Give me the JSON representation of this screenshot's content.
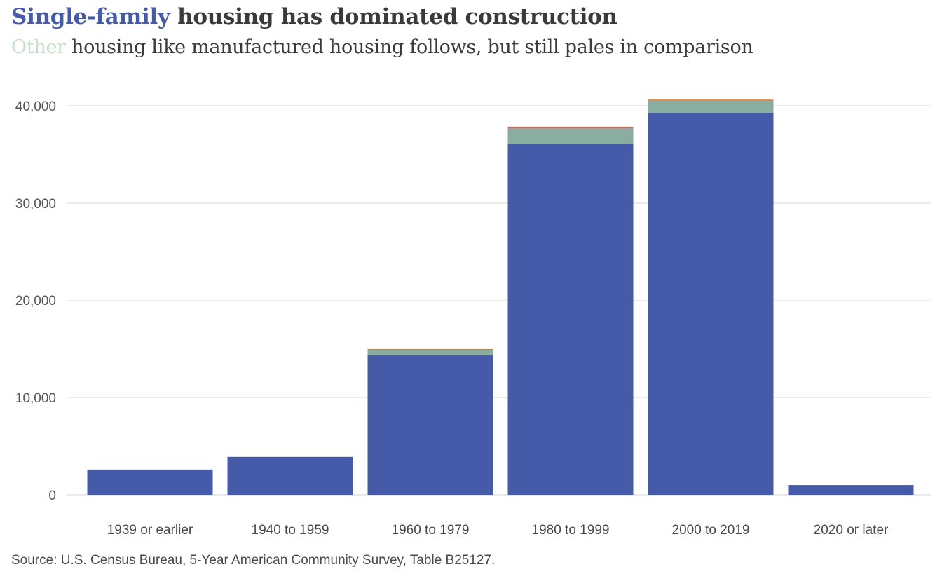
{
  "title": {
    "highlight": "Single-family",
    "rest": " housing has dominated construction"
  },
  "subtitle": {
    "highlight": "Other",
    "rest": " housing like manufactured housing follows, but still pales in comparison"
  },
  "source": "Source: U.S. Census Bureau, 5-Year  American Community Survey, Table B25127.",
  "colors": {
    "single_family": "#455aa9",
    "other": "#8aada1",
    "thin1": "#b0706c",
    "thin2": "#e8965a",
    "grid": "#d4d4d4"
  },
  "chart_data": {
    "type": "bar",
    "stacked": true,
    "categories": [
      "1939 or earlier",
      "1940 to 1959",
      "1960 to 1979",
      "1980 to 1999",
      "2000 to 2019",
      "2020 or later"
    ],
    "series": [
      {
        "color_key": "single_family",
        "values": [
          2600,
          3900,
          14400,
          36100,
          39300,
          1000
        ]
      },
      {
        "color_key": "other",
        "values": [
          0,
          0,
          500,
          1600,
          1200,
          0
        ]
      },
      {
        "color_key": "thin1",
        "values": [
          0,
          0,
          80,
          100,
          60,
          0
        ]
      },
      {
        "color_key": "thin2",
        "values": [
          0,
          0,
          50,
          60,
          100,
          0
        ]
      }
    ],
    "ylim": [
      0,
      40000
    ],
    "yticks": [
      0,
      10000,
      20000,
      30000,
      40000
    ],
    "ytick_labels": [
      "0",
      "10,000",
      "20,000",
      "30,000",
      "40,000"
    ],
    "grid": true,
    "legend": "none"
  }
}
